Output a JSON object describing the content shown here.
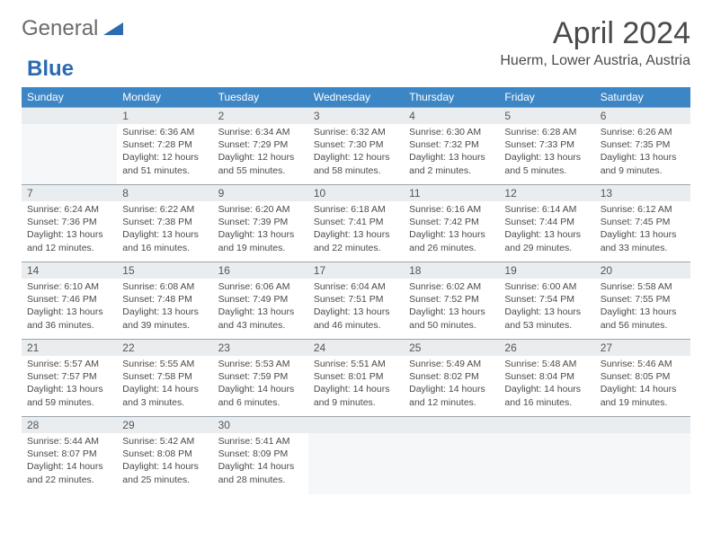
{
  "logo": {
    "text1": "General",
    "text2": "Blue"
  },
  "title": "April 2024",
  "location": "Huerm, Lower Austria, Austria",
  "colors": {
    "header_bg": "#3d86c6",
    "header_text": "#ffffff",
    "daynum_bg": "#e9edef",
    "border": "#9aa5ad",
    "accent": "#2b6cb0",
    "text": "#4a4a4a"
  },
  "weekdays": [
    "Sunday",
    "Monday",
    "Tuesday",
    "Wednesday",
    "Thursday",
    "Friday",
    "Saturday"
  ],
  "weeks": [
    [
      null,
      {
        "n": "1",
        "sr": "6:36 AM",
        "ss": "7:28 PM",
        "dl": "12 hours and 51 minutes."
      },
      {
        "n": "2",
        "sr": "6:34 AM",
        "ss": "7:29 PM",
        "dl": "12 hours and 55 minutes."
      },
      {
        "n": "3",
        "sr": "6:32 AM",
        "ss": "7:30 PM",
        "dl": "12 hours and 58 minutes."
      },
      {
        "n": "4",
        "sr": "6:30 AM",
        "ss": "7:32 PM",
        "dl": "13 hours and 2 minutes."
      },
      {
        "n": "5",
        "sr": "6:28 AM",
        "ss": "7:33 PM",
        "dl": "13 hours and 5 minutes."
      },
      {
        "n": "6",
        "sr": "6:26 AM",
        "ss": "7:35 PM",
        "dl": "13 hours and 9 minutes."
      }
    ],
    [
      {
        "n": "7",
        "sr": "6:24 AM",
        "ss": "7:36 PM",
        "dl": "13 hours and 12 minutes."
      },
      {
        "n": "8",
        "sr": "6:22 AM",
        "ss": "7:38 PM",
        "dl": "13 hours and 16 minutes."
      },
      {
        "n": "9",
        "sr": "6:20 AM",
        "ss": "7:39 PM",
        "dl": "13 hours and 19 minutes."
      },
      {
        "n": "10",
        "sr": "6:18 AM",
        "ss": "7:41 PM",
        "dl": "13 hours and 22 minutes."
      },
      {
        "n": "11",
        "sr": "6:16 AM",
        "ss": "7:42 PM",
        "dl": "13 hours and 26 minutes."
      },
      {
        "n": "12",
        "sr": "6:14 AM",
        "ss": "7:44 PM",
        "dl": "13 hours and 29 minutes."
      },
      {
        "n": "13",
        "sr": "6:12 AM",
        "ss": "7:45 PM",
        "dl": "13 hours and 33 minutes."
      }
    ],
    [
      {
        "n": "14",
        "sr": "6:10 AM",
        "ss": "7:46 PM",
        "dl": "13 hours and 36 minutes."
      },
      {
        "n": "15",
        "sr": "6:08 AM",
        "ss": "7:48 PM",
        "dl": "13 hours and 39 minutes."
      },
      {
        "n": "16",
        "sr": "6:06 AM",
        "ss": "7:49 PM",
        "dl": "13 hours and 43 minutes."
      },
      {
        "n": "17",
        "sr": "6:04 AM",
        "ss": "7:51 PM",
        "dl": "13 hours and 46 minutes."
      },
      {
        "n": "18",
        "sr": "6:02 AM",
        "ss": "7:52 PM",
        "dl": "13 hours and 50 minutes."
      },
      {
        "n": "19",
        "sr": "6:00 AM",
        "ss": "7:54 PM",
        "dl": "13 hours and 53 minutes."
      },
      {
        "n": "20",
        "sr": "5:58 AM",
        "ss": "7:55 PM",
        "dl": "13 hours and 56 minutes."
      }
    ],
    [
      {
        "n": "21",
        "sr": "5:57 AM",
        "ss": "7:57 PM",
        "dl": "13 hours and 59 minutes."
      },
      {
        "n": "22",
        "sr": "5:55 AM",
        "ss": "7:58 PM",
        "dl": "14 hours and 3 minutes."
      },
      {
        "n": "23",
        "sr": "5:53 AM",
        "ss": "7:59 PM",
        "dl": "14 hours and 6 minutes."
      },
      {
        "n": "24",
        "sr": "5:51 AM",
        "ss": "8:01 PM",
        "dl": "14 hours and 9 minutes."
      },
      {
        "n": "25",
        "sr": "5:49 AM",
        "ss": "8:02 PM",
        "dl": "14 hours and 12 minutes."
      },
      {
        "n": "26",
        "sr": "5:48 AM",
        "ss": "8:04 PM",
        "dl": "14 hours and 16 minutes."
      },
      {
        "n": "27",
        "sr": "5:46 AM",
        "ss": "8:05 PM",
        "dl": "14 hours and 19 minutes."
      }
    ],
    [
      {
        "n": "28",
        "sr": "5:44 AM",
        "ss": "8:07 PM",
        "dl": "14 hours and 22 minutes."
      },
      {
        "n": "29",
        "sr": "5:42 AM",
        "ss": "8:08 PM",
        "dl": "14 hours and 25 minutes."
      },
      {
        "n": "30",
        "sr": "5:41 AM",
        "ss": "8:09 PM",
        "dl": "14 hours and 28 minutes."
      },
      null,
      null,
      null,
      null
    ]
  ]
}
